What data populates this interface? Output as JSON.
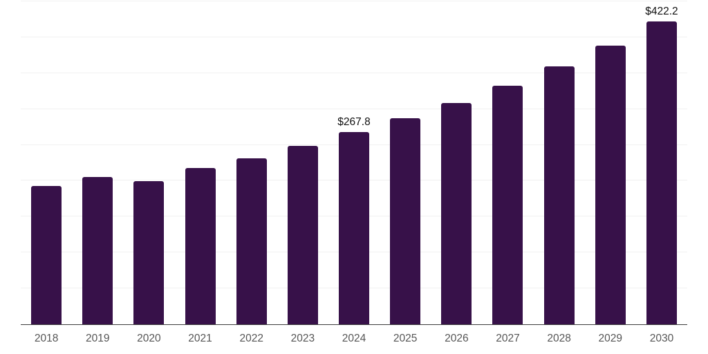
{
  "chart_data": {
    "type": "bar",
    "title": "",
    "xlabel": "",
    "ylabel": "",
    "categories": [
      "2018",
      "2019",
      "2020",
      "2021",
      "2022",
      "2023",
      "2024",
      "2025",
      "2026",
      "2027",
      "2028",
      "2029",
      "2030"
    ],
    "values": [
      193.0,
      205.5,
      199.7,
      218.0,
      231.5,
      248.6,
      267.8,
      287.0,
      308.0,
      332.0,
      359.0,
      388.7,
      422.2
    ],
    "value_labels": [
      "",
      "",
      "",
      "",
      "",
      "",
      "$267.8",
      "",
      "",
      "",
      "",
      "",
      "$422.2"
    ],
    "labeled_points": [
      {
        "category": "2024",
        "label": "$267.8",
        "value": 267.8
      },
      {
        "category": "2030",
        "label": "$422.2",
        "value": 422.2
      }
    ],
    "ylim": [
      0,
      450
    ],
    "grid": true,
    "grid_step": 50,
    "legend": false,
    "legend_position": "none",
    "colors": {
      "bar": "#371149",
      "grid": "#f1f1f1",
      "axis": "#3b3b3b",
      "tick_label": "#555555",
      "value_label": "#111111",
      "background": "#ffffff"
    }
  }
}
